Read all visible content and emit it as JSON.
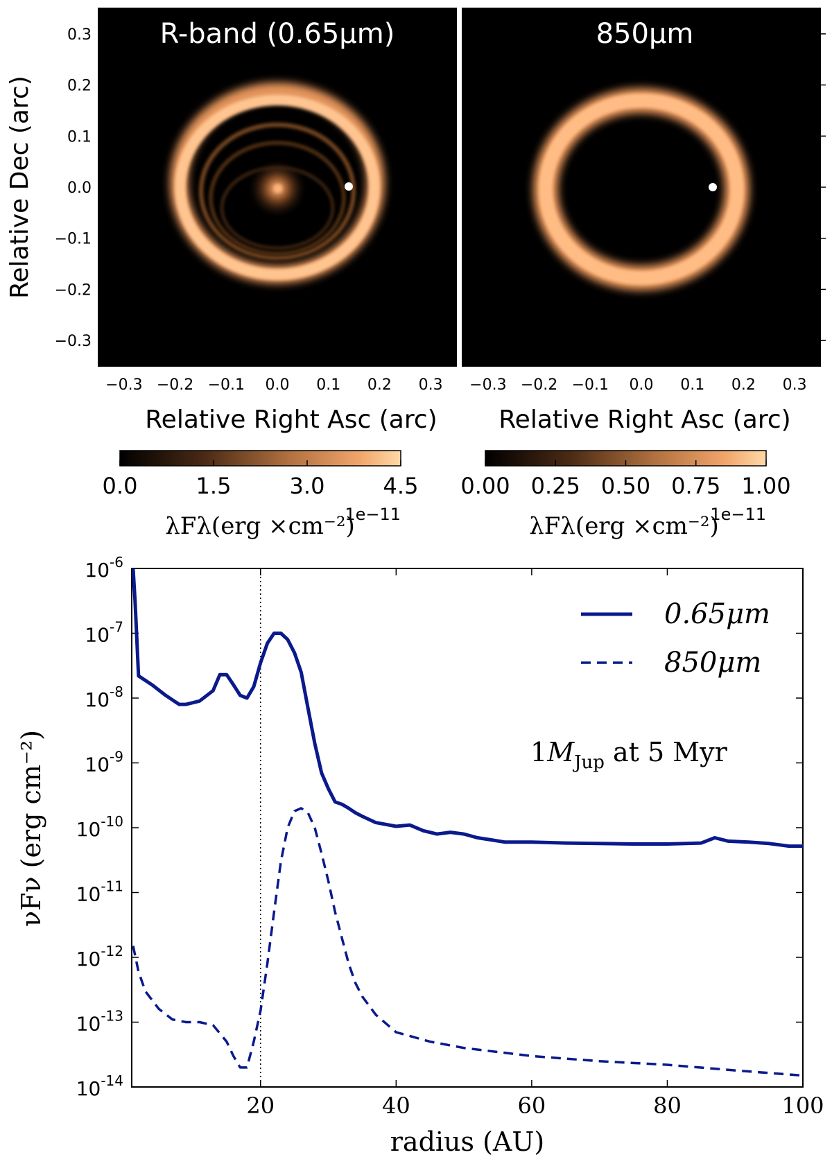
{
  "chart_data": [
    {
      "type": "heatmap",
      "title": "R-band (0.65μm)",
      "xlabel": "Relative Right Asc (arc)",
      "ylabel": "Relative Dec (arc)",
      "xlim": [
        -0.35,
        0.35
      ],
      "ylim": [
        -0.35,
        0.35
      ],
      "xticks": [
        "−0.3",
        "−0.2",
        "−0.1",
        "0.0",
        "0.1",
        "0.2",
        "0.3"
      ],
      "yticks": [
        "0.3",
        "0.2",
        "0.1",
        "0.0",
        "−0.1",
        "−0.2",
        "−0.3"
      ],
      "colorbar": {
        "ticks": [
          "0.0",
          "1.5",
          "3.0",
          "4.5"
        ],
        "label": "λFλ(erg ×cm⁻²)",
        "offset": "1e−11",
        "range": [
          0,
          4.5
        ],
        "colors": [
          "#000000",
          "#ffd9a6"
        ]
      },
      "features": {
        "ring_radius": 0.2,
        "planet_marker": {
          "x": 0.14,
          "y": 0.0
        }
      }
    },
    {
      "type": "heatmap",
      "title": "850μm",
      "xlabel": "Relative Right Asc (arc)",
      "xlim": [
        -0.35,
        0.35
      ],
      "ylim": [
        -0.35,
        0.35
      ],
      "xticks": [
        "−0.3",
        "−0.2",
        "−0.1",
        "0.0",
        "0.1",
        "0.2",
        "0.3"
      ],
      "colorbar": {
        "ticks": [
          "0.00",
          "0.25",
          "0.50",
          "0.75",
          "1.00"
        ],
        "label": "λFλ(erg ×cm⁻²)",
        "offset": "1e−11",
        "range": [
          0,
          1.0
        ],
        "colors": [
          "#000000",
          "#ffd9a6"
        ]
      },
      "features": {
        "ring_radius": 0.2,
        "planet_marker": {
          "x": 0.14,
          "y": 0.0
        }
      }
    },
    {
      "type": "line",
      "xlabel": "radius (AU)",
      "ylabel": "νFν (erg cm⁻²)",
      "xlim": [
        1,
        100
      ],
      "ylim": [
        1e-14,
        1e-06
      ],
      "yscale": "log",
      "xticks": [
        "20",
        "40",
        "60",
        "80",
        "100"
      ],
      "yticks_exp": [
        "-6",
        "-7",
        "-8",
        "-9",
        "-10",
        "-11",
        "-12",
        "-13",
        "-14"
      ],
      "ytick_base": "10",
      "vline_x": 20,
      "annotation": {
        "prefix": "1",
        "mass_symbol": "M",
        "mass_sub": "Jup",
        "suffix": " at  5 Myr"
      },
      "legend_position": "top-right",
      "series": [
        {
          "name": "0.65μm",
          "style": "solid",
          "color": "#0a1a8c",
          "x": [
            1.2,
            1.5,
            2.0,
            4,
            6,
            8,
            9,
            11,
            13,
            14,
            15,
            16,
            17,
            18,
            19,
            20,
            21,
            22,
            23,
            24,
            25,
            26,
            27,
            28,
            29,
            30,
            31,
            32,
            33,
            34,
            35,
            37,
            40,
            42,
            44,
            46,
            48,
            50,
            52,
            54,
            56,
            60,
            65,
            70,
            75,
            80,
            85,
            87,
            89,
            92,
            95,
            98,
            100
          ],
          "y": [
            1e-06,
            3e-07,
            2.2e-08,
            1.6e-08,
            1.1e-08,
            8e-09,
            8e-09,
            9e-09,
            1.3e-08,
            2.3e-08,
            2.3e-08,
            1.6e-08,
            1.1e-08,
            1e-08,
            1.5e-08,
            3.5e-08,
            7e-08,
            1e-07,
            1e-07,
            8e-08,
            5e-08,
            2.5e-08,
            7e-09,
            2e-09,
            7e-10,
            4e-10,
            2.5e-10,
            2.3e-10,
            2e-10,
            1.7e-10,
            1.5e-10,
            1.2e-10,
            1.05e-10,
            1.1e-10,
            9e-11,
            8e-11,
            8.5e-11,
            8e-11,
            7e-11,
            6.5e-11,
            6e-11,
            6e-11,
            5.8e-11,
            5.7e-11,
            5.6e-11,
            5.6e-11,
            5.8e-11,
            7e-11,
            6.2e-11,
            6e-11,
            5.7e-11,
            5.2e-11,
            5.2e-11
          ]
        },
        {
          "name": "850μm",
          "style": "dashed",
          "color": "#0a1a8c",
          "x": [
            1.2,
            2,
            3,
            5,
            7,
            9,
            11,
            13,
            15,
            16,
            17,
            18,
            19,
            20,
            21,
            22,
            23,
            24,
            25,
            26,
            27,
            28,
            29,
            30,
            31,
            32,
            33,
            34,
            35,
            37,
            40,
            45,
            50,
            60,
            70,
            80,
            90,
            100
          ],
          "y": [
            1.5e-12,
            6e-13,
            3e-13,
            1.6e-13,
            1.1e-13,
            1e-13,
            1e-13,
            9e-14,
            5e-14,
            3e-14,
            2e-14,
            2e-14,
            5e-14,
            1.5e-13,
            8e-13,
            5e-12,
            3e-11,
            1e-10,
            1.8e-10,
            2e-10,
            1.7e-10,
            1e-10,
            4e-11,
            1.5e-11,
            5e-12,
            2e-12,
            8e-13,
            4e-13,
            2.5e-13,
            1.3e-13,
            7e-14,
            5e-14,
            4e-14,
            3e-14,
            2.5e-14,
            2.2e-14,
            1.8e-14,
            1.5e-14
          ]
        }
      ]
    }
  ]
}
